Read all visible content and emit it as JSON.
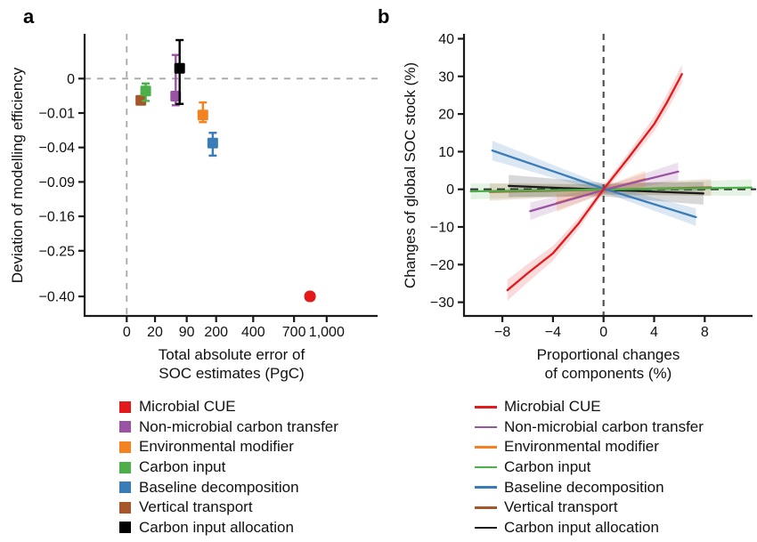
{
  "figure": {
    "panels": {
      "a": {
        "letter": "a"
      },
      "b": {
        "letter": "b"
      }
    }
  },
  "chart_data": [
    {
      "panel": "a",
      "type": "scatter",
      "title": "",
      "xlabel": "Total absolute error of SOC estimates (PgC)",
      "xlabel_lines": [
        "Total absolute error of",
        "SOC estimates (PgC)"
      ],
      "ylabel": "Deviation of modelling efficiency",
      "x_scale": "sqrt",
      "y_scale": "sqrt-of-negative (0 at top, more negative downward)",
      "x_ticks": [
        0,
        20,
        90,
        200,
        400,
        700,
        1000
      ],
      "x_tick_labels": [
        "0",
        "20",
        "90",
        "200",
        "400",
        "700",
        "1,000"
      ],
      "y_ticks": [
        0,
        -0.01,
        -0.04,
        -0.09,
        -0.16,
        -0.25,
        -0.4
      ],
      "y_tick_labels": [
        "0",
        "−0.01",
        "−0.04",
        "−0.09",
        "−0.16",
        "−0.25",
        "−0.40"
      ],
      "reference_lines": {
        "x": 0,
        "y": 0
      },
      "points": [
        {
          "name": "Vertical transport",
          "color": "#a65628",
          "x": 5,
          "y": -0.004,
          "y_lo": null,
          "y_hi": null,
          "marker": "square"
        },
        {
          "name": "Carbon input",
          "color": "#4daf4a",
          "x": 9,
          "y": -0.0013,
          "y_lo": -0.0042,
          "y_hi": -0.0002,
          "marker": "square"
        },
        {
          "name": "Non-microbial carbon transfer",
          "color": "#9a52a3",
          "x": 60,
          "y": -0.0026,
          "y_lo": -0.006,
          "y_hi": 0.0047,
          "marker": "square"
        },
        {
          "name": "Carbon input allocation",
          "color": "#000000",
          "x": 70,
          "y": 0.0009,
          "y_lo": -0.0054,
          "y_hi": 0.0125,
          "marker": "square"
        },
        {
          "name": "Environmental modifier",
          "color": "#f58220",
          "x": 145,
          "y": -0.0112,
          "y_lo": -0.016,
          "y_hi": -0.0048,
          "marker": "square"
        },
        {
          "name": "Baseline decomposition",
          "color": "#3a7cb8",
          "x": 185,
          "y": -0.035,
          "y_lo": -0.05,
          "y_hi": -0.0248,
          "marker": "square"
        },
        {
          "name": "Microbial CUE",
          "color": "#e31a1c",
          "x": 840,
          "y": -0.4,
          "y_lo": -0.412,
          "y_hi": -0.389,
          "marker": "round"
        }
      ]
    },
    {
      "panel": "b",
      "type": "line",
      "title": "",
      "xlabel": "Proportional changes of components (%)",
      "xlabel_lines": [
        "Proportional changes",
        "of components (%)"
      ],
      "ylabel": "Changes of global SOC stock (%)",
      "x_ticks": [
        -8,
        -4,
        0,
        4,
        8
      ],
      "x_tick_labels": [
        "−8",
        "−4",
        "0",
        "4",
        "8"
      ],
      "y_ticks": [
        40,
        30,
        20,
        10,
        0,
        -10,
        -20,
        -30
      ],
      "y_tick_labels": [
        "40",
        "30",
        "20",
        "10",
        "0",
        "−10",
        "−20",
        "−30"
      ],
      "xlim": [
        -11,
        11.8
      ],
      "ylim": [
        -33,
        42
      ],
      "reference_lines": {
        "x": 0,
        "y": 0
      },
      "series": [
        {
          "name": "Microbial CUE",
          "color": "#e31a1c",
          "points": [
            [
              -7.6,
              -26.8
            ],
            [
              -6,
              -22.3
            ],
            [
              -4,
              -17
            ],
            [
              -2,
              -9.2
            ],
            [
              0,
              0
            ],
            [
              2,
              8.5
            ],
            [
              4,
              17.3
            ],
            [
              5,
              23
            ],
            [
              6.2,
              30.6
            ]
          ],
          "band_end": 2.8,
          "band_center": 1.0,
          "band_opacity": 0.16
        },
        {
          "name": "Non-microbial carbon transfer",
          "color": "#9a52a3",
          "points": [
            [
              -5.8,
              -5.8
            ],
            [
              0,
              -0.2
            ],
            [
              5.9,
              4.7
            ]
          ],
          "band_end": 2.4,
          "band_center": 0.9,
          "band_opacity": 0.18
        },
        {
          "name": "Environmental modifier",
          "color": "#f58220",
          "points": [
            [
              -3.7,
              -3.6
            ],
            [
              0,
              -0.2
            ],
            [
              3.3,
              2.7
            ]
          ],
          "band_end": 2.4,
          "band_center": 0.9,
          "band_opacity": 0.18
        },
        {
          "name": "Carbon input",
          "color": "#4daf4a",
          "points": [
            [
              -10.5,
              -0.55
            ],
            [
              0,
              -0.05
            ],
            [
              11.7,
              0.45
            ]
          ],
          "band_end": 2.2,
          "band_center": 1.3,
          "band_opacity": 0.15
        },
        {
          "name": "Baseline decomposition",
          "color": "#3a7cb8",
          "points": [
            [
              -8.8,
              10.3
            ],
            [
              0,
              0.2
            ],
            [
              7.3,
              -7.4
            ]
          ],
          "band_end": 2.6,
          "band_center": 1.0,
          "band_opacity": 0.18
        },
        {
          "name": "Vertical transport",
          "color": "#a65628",
          "points": [
            [
              -9,
              -0.7
            ],
            [
              0,
              -0.1
            ],
            [
              8.5,
              0.5
            ]
          ],
          "band_end": 2.3,
          "band_center": 1.4,
          "band_opacity": 0.18
        },
        {
          "name": "Carbon input allocation",
          "color": "#1a1a1a",
          "points": [
            [
              -7.5,
              0.9
            ],
            [
              0,
              -0.1
            ],
            [
              7.9,
              -1.1
            ]
          ],
          "band_end": 3.0,
          "band_center": 1.8,
          "band_opacity": 0.17
        }
      ]
    }
  ],
  "legend_a": {
    "swatch": "square",
    "items": [
      {
        "label": "Microbial CUE",
        "color": "#e31a1c"
      },
      {
        "label": "Non-microbial carbon transfer",
        "color": "#9a52a3"
      },
      {
        "label": "Environmental modifier",
        "color": "#f58220"
      },
      {
        "label": "Carbon input",
        "color": "#4daf4a"
      },
      {
        "label": "Baseline decomposition",
        "color": "#3a7cb8"
      },
      {
        "label": "Vertical transport",
        "color": "#a65628"
      },
      {
        "label": "Carbon input allocation",
        "color": "#000000"
      }
    ]
  },
  "legend_b": {
    "swatch": "line",
    "items": [
      {
        "label": "Microbial CUE",
        "color": "#e31a1c"
      },
      {
        "label": "Non-microbial carbon transfer",
        "color": "#9a52a3"
      },
      {
        "label": "Environmental modifier",
        "color": "#f58220"
      },
      {
        "label": "Carbon input",
        "color": "#4daf4a"
      },
      {
        "label": "Baseline decomposition",
        "color": "#3a7cb8"
      },
      {
        "label": "Vertical transport",
        "color": "#a65628"
      },
      {
        "label": "Carbon input allocation",
        "color": "#1a1a1a"
      }
    ]
  }
}
